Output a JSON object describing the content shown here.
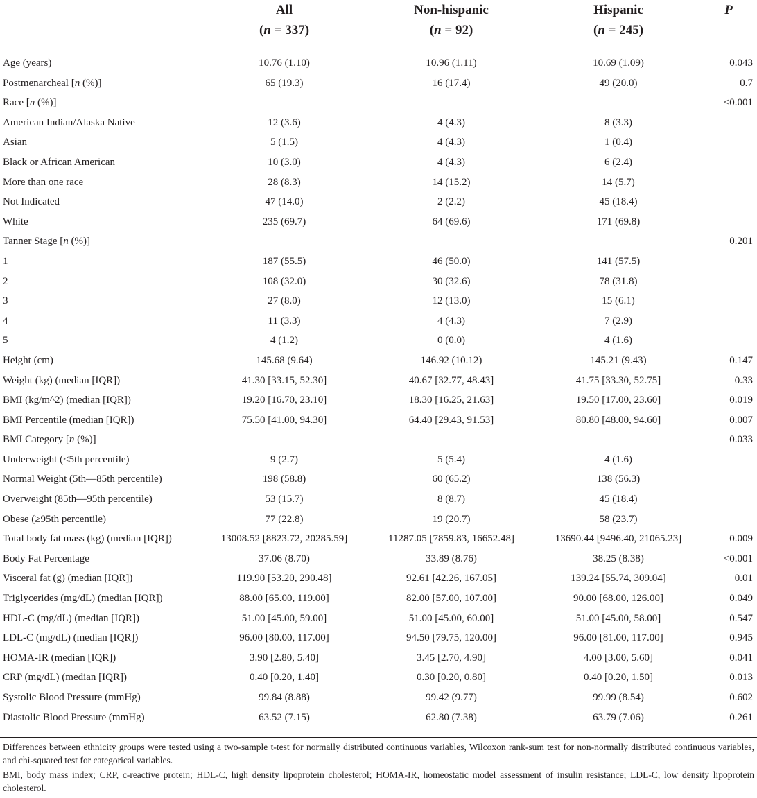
{
  "table": {
    "columns": [
      {
        "name": "All",
        "n": "(n = 337)"
      },
      {
        "name": "Non-hispanic",
        "n": "(n = 92)"
      },
      {
        "name": "Hispanic",
        "n": "(n = 245)"
      }
    ],
    "p_header": "P",
    "rows": [
      {
        "label": "Age (years)",
        "all": "10.76 (1.10)",
        "nonhispanic": "10.96 (1.11)",
        "hispanic": "10.69 (1.09)",
        "p": "0.043"
      },
      {
        "label": "Postmenarcheal [n (%)]",
        "all": "65 (19.3)",
        "nonhispanic": "16 (17.4)",
        "hispanic": "49 (20.0)",
        "p": "0.7"
      },
      {
        "label": "Race [n (%)]",
        "all": "",
        "nonhispanic": "",
        "hispanic": "",
        "p": "<0.001"
      },
      {
        "label": "American Indian/Alaska Native",
        "all": "12 (3.6)",
        "nonhispanic": "4 (4.3)",
        "hispanic": "8 (3.3)",
        "p": ""
      },
      {
        "label": "Asian",
        "all": "5 (1.5)",
        "nonhispanic": "4 (4.3)",
        "hispanic": "1 (0.4)",
        "p": ""
      },
      {
        "label": "Black or African American",
        "all": "10 (3.0)",
        "nonhispanic": "4 (4.3)",
        "hispanic": "6 (2.4)",
        "p": ""
      },
      {
        "label": "More than one race",
        "all": "28 (8.3)",
        "nonhispanic": "14 (15.2)",
        "hispanic": "14 (5.7)",
        "p": ""
      },
      {
        "label": "Not Indicated",
        "all": "47 (14.0)",
        "nonhispanic": "2 (2.2)",
        "hispanic": "45 (18.4)",
        "p": ""
      },
      {
        "label": "White",
        "all": "235 (69.7)",
        "nonhispanic": "64 (69.6)",
        "hispanic": "171 (69.8)",
        "p": ""
      },
      {
        "label": "Tanner Stage [n (%)]",
        "all": "",
        "nonhispanic": "",
        "hispanic": "",
        "p": "0.201"
      },
      {
        "label": "1",
        "all": "187 (55.5)",
        "nonhispanic": "46 (50.0)",
        "hispanic": "141 (57.5)",
        "p": ""
      },
      {
        "label": "2",
        "all": "108 (32.0)",
        "nonhispanic": "30 (32.6)",
        "hispanic": "78 (31.8)",
        "p": ""
      },
      {
        "label": "3",
        "all": "27 (8.0)",
        "nonhispanic": "12 (13.0)",
        "hispanic": "15 (6.1)",
        "p": ""
      },
      {
        "label": "4",
        "all": "11 (3.3)",
        "nonhispanic": "4 (4.3)",
        "hispanic": "7 (2.9)",
        "p": ""
      },
      {
        "label": "5",
        "all": "4 (1.2)",
        "nonhispanic": "0 (0.0)",
        "hispanic": "4 (1.6)",
        "p": ""
      },
      {
        "label": "Height (cm)",
        "all": "145.68 (9.64)",
        "nonhispanic": "146.92 (10.12)",
        "hispanic": "145.21 (9.43)",
        "p": "0.147"
      },
      {
        "label": "Weight (kg) (median [IQR])",
        "all": "41.30 [33.15, 52.30]",
        "nonhispanic": "40.67 [32.77, 48.43]",
        "hispanic": "41.75 [33.30, 52.75]",
        "p": "0.33"
      },
      {
        "label": "BMI (kg/m^2) (median [IQR])",
        "all": "19.20 [16.70, 23.10]",
        "nonhispanic": "18.30 [16.25, 21.63]",
        "hispanic": "19.50 [17.00, 23.60]",
        "p": "0.019"
      },
      {
        "label": "BMI Percentile (median [IQR])",
        "all": "75.50 [41.00, 94.30]",
        "nonhispanic": "64.40 [29.43, 91.53]",
        "hispanic": "80.80 [48.00, 94.60]",
        "p": "0.007"
      },
      {
        "label": "BMI Category [n (%)]",
        "all": "",
        "nonhispanic": "",
        "hispanic": "",
        "p": "0.033"
      },
      {
        "label": "Underweight (<5th percentile)",
        "all": "9 (2.7)",
        "nonhispanic": "5 (5.4)",
        "hispanic": "4 (1.6)",
        "p": ""
      },
      {
        "label": "Normal Weight (5th—85th percentile)",
        "all": "198 (58.8)",
        "nonhispanic": "60 (65.2)",
        "hispanic": "138 (56.3)",
        "p": ""
      },
      {
        "label": "Overweight (85th—95th percentile)",
        "all": "53 (15.7)",
        "nonhispanic": "8 (8.7)",
        "hispanic": "45 (18.4)",
        "p": ""
      },
      {
        "label": "Obese (≥95th percentile)",
        "all": "77 (22.8)",
        "nonhispanic": "19 (20.7)",
        "hispanic": "58 (23.7)",
        "p": ""
      },
      {
        "label": "Total body fat mass (kg) (median [IQR])",
        "all": "13008.52 [8823.72, 20285.59]",
        "nonhispanic": "11287.05 [7859.83, 16652.48]",
        "hispanic": "13690.44 [9496.40, 21065.23]",
        "p": "0.009"
      },
      {
        "label": "Body Fat Percentage",
        "all": "37.06 (8.70)",
        "nonhispanic": "33.89 (8.76)",
        "hispanic": "38.25 (8.38)",
        "p": "<0.001"
      },
      {
        "label": "Visceral fat (g) (median [IQR])",
        "all": "119.90 [53.20, 290.48]",
        "nonhispanic": "92.61 [42.26, 167.05]",
        "hispanic": "139.24 [55.74, 309.04]",
        "p": "0.01"
      },
      {
        "label": "Triglycerides (mg/dL) (median [IQR])",
        "all": "88.00 [65.00, 119.00]",
        "nonhispanic": "82.00 [57.00, 107.00]",
        "hispanic": "90.00 [68.00, 126.00]",
        "p": "0.049"
      },
      {
        "label": "HDL-C (mg/dL) (median [IQR])",
        "all": "51.00 [45.00, 59.00]",
        "nonhispanic": "51.00 [45.00, 60.00]",
        "hispanic": "51.00 [45.00, 58.00]",
        "p": "0.547"
      },
      {
        "label": "LDL-C (mg/dL) (median [IQR])",
        "all": "96.00 [80.00, 117.00]",
        "nonhispanic": "94.50 [79.75, 120.00]",
        "hispanic": "96.00 [81.00, 117.00]",
        "p": "0.945"
      },
      {
        "label": "HOMA-IR (median [IQR])",
        "all": "3.90 [2.80, 5.40]",
        "nonhispanic": "3.45 [2.70, 4.90]",
        "hispanic": "4.00 [3.00, 5.60]",
        "p": "0.041"
      },
      {
        "label": "CRP (mg/dL) (median [IQR])",
        "all": "0.40 [0.20, 1.40]",
        "nonhispanic": "0.30 [0.20, 0.80]",
        "hispanic": "0.40 [0.20, 1.50]",
        "p": "0.013"
      },
      {
        "label": "Systolic Blood Pressure (mmHg)",
        "all": "99.84 (8.88)",
        "nonhispanic": "99.42 (9.77)",
        "hispanic": "99.99 (8.54)",
        "p": "0.602"
      },
      {
        "label": "Diastolic Blood Pressure (mmHg)",
        "all": "63.52 (7.15)",
        "nonhispanic": "62.80 (7.38)",
        "hispanic": "63.79 (7.06)",
        "p": "0.261"
      }
    ]
  },
  "notes": {
    "tests": "Differences between ethnicity groups were tested using a two-sample t-test for normally distributed continuous variables, Wilcoxon rank-sum test for non-normally distributed continuous variables, and chi-squared test for categorical variables.",
    "abbreviations": "BMI, body mass index; CRP, c-reactive protein; HDL-C, high density lipoprotein cholesterol; HOMA-IR, homeostatic model assessment of insulin resistance; LDL-C, low density lipoprotein cholesterol."
  }
}
